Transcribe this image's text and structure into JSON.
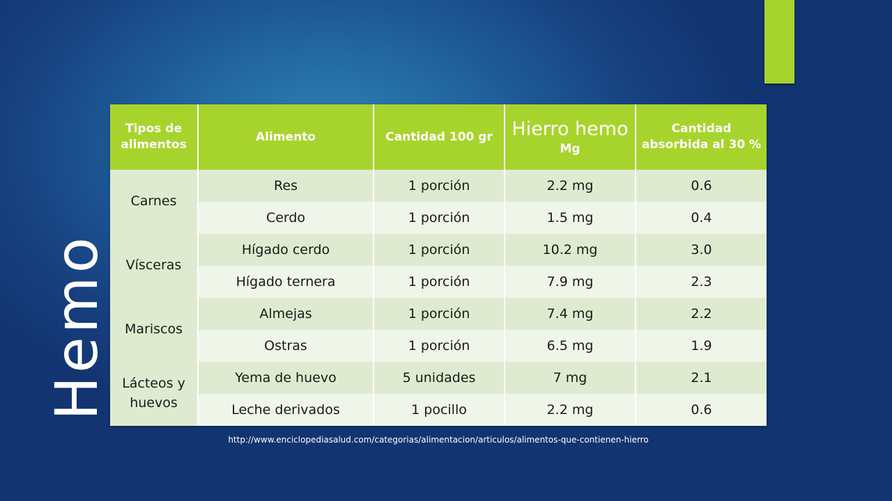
{
  "slide": {
    "title": "Hemo",
    "source_url": "http://www.enciclopediasalud.com/categorias/alimentacion/articulos/alimentos-que-contienen-hierro",
    "accent_color": "#a7d42c"
  },
  "table": {
    "headers": {
      "tipos": "Tipos de alimentos",
      "alimento": "Alimento",
      "cantidad": "Cantidad 100 gr",
      "hierro_main": "Hierro hemo",
      "hierro_unit": "Mg",
      "absorbida": "Cantidad absorbida al 30 %"
    },
    "groups": [
      {
        "name": "Carnes",
        "rows": [
          {
            "alimento": "Res",
            "cantidad": "1 porción",
            "hierro": "2.2 mg",
            "absorbida": "0.6"
          },
          {
            "alimento": "Cerdo",
            "cantidad": "1 porción",
            "hierro": "1.5 mg",
            "absorbida": "0.4"
          }
        ]
      },
      {
        "name": "Vísceras",
        "rows": [
          {
            "alimento": "Hígado cerdo",
            "cantidad": "1 porción",
            "hierro": "10.2 mg",
            "absorbida": "3.0"
          },
          {
            "alimento": "Hígado ternera",
            "cantidad": "1 porción",
            "hierro": "7.9 mg",
            "absorbida": "2.3"
          }
        ]
      },
      {
        "name": "Mariscos",
        "rows": [
          {
            "alimento": "Almejas",
            "cantidad": "1 porción",
            "hierro": "7.4 mg",
            "absorbida": "2.2"
          },
          {
            "alimento": "Ostras",
            "cantidad": "1 porción",
            "hierro": "6.5 mg",
            "absorbida": "1.9"
          }
        ]
      },
      {
        "name": "Lácteos y huevos",
        "rows": [
          {
            "alimento": "Yema de huevo",
            "cantidad": "5 unidades",
            "hierro": "7 mg",
            "absorbida": "2.1"
          },
          {
            "alimento": "Leche derivados",
            "cantidad": "1 pocillo",
            "hierro": "2.2 mg",
            "absorbida": "0.6"
          }
        ]
      }
    ]
  }
}
